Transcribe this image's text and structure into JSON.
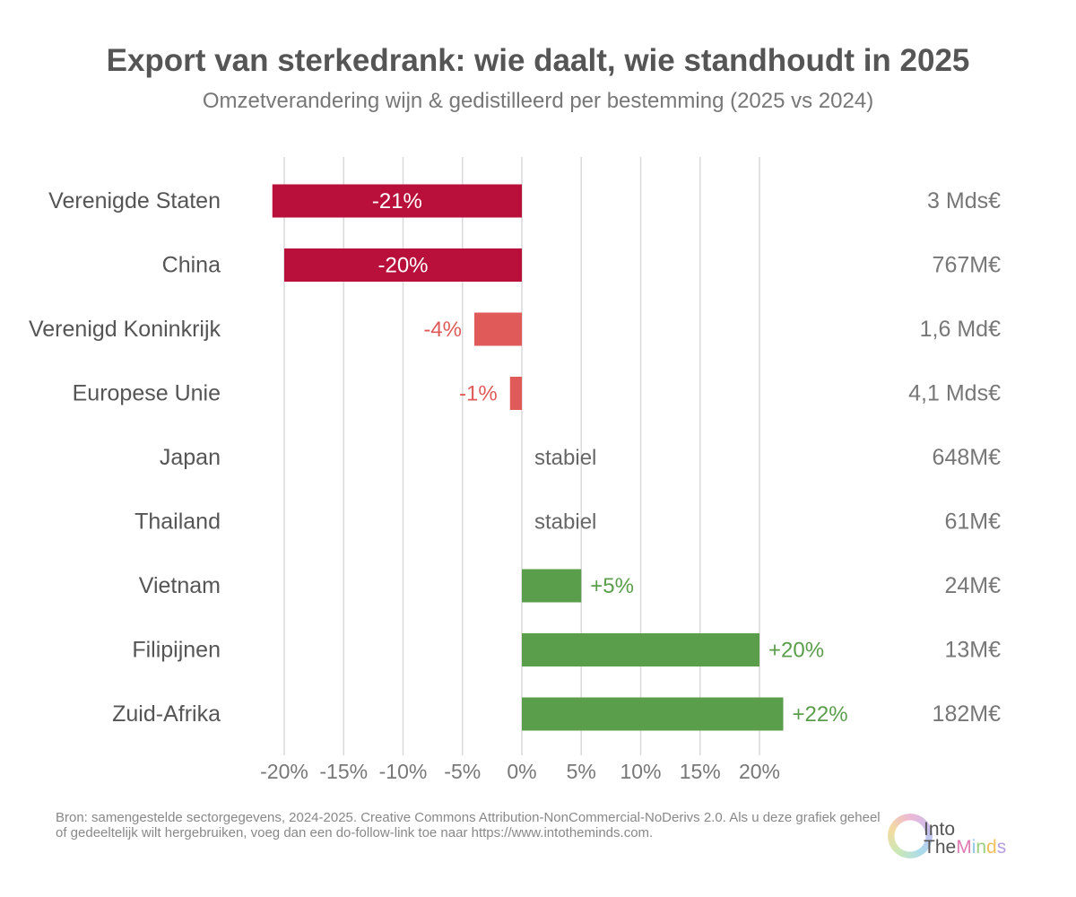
{
  "header": {
    "title": "Export van sterkedrank: wie daalt, wie standhoudt in 2025",
    "subtitle": "Omzetverandering wijn & gedistilleerd per bestemming (2025 vs 2024)"
  },
  "chart_data": {
    "type": "bar",
    "orientation": "horizontal",
    "title": "Export van sterkedrank: wie daalt, wie standhoudt in 2025",
    "subtitle": "Omzetverandering wijn & gedistilleerd per bestemming (2025 vs 2024)",
    "categories": [
      "Verenigde Staten",
      "China",
      "Verenigd Koninkrijk",
      "Europese Unie",
      "Japan",
      "Thailand",
      "Vietnam",
      "Filipijnen",
      "Zuid-Afrika"
    ],
    "values": [
      -21,
      -20,
      -4,
      -1,
      0,
      0,
      5,
      20,
      22
    ],
    "value_labels": [
      "-21%",
      "-20%",
      "-4%",
      "-1%",
      "stabiel",
      "stabiel",
      "+5%",
      "+20%",
      "+22%"
    ],
    "totals": [
      "3 Mds€",
      "767M€",
      "1,6 Md€",
      "4,1 Mds€",
      "648M€",
      "61M€",
      "24M€",
      "13M€",
      "182M€"
    ],
    "xlim": [
      -20,
      20
    ],
    "x_ticks": [
      -20,
      -15,
      -10,
      -5,
      0,
      5,
      10,
      15,
      20
    ],
    "x_tick_labels": [
      "-20%",
      "-15%",
      "-10%",
      "-5%",
      "0%",
      "5%",
      "10%",
      "15%",
      "20%"
    ],
    "grid": "vertical",
    "xlabel": "",
    "ylabel": "",
    "colors": {
      "strong_negative": "#b8103a",
      "mild_negative": "#e05a5a",
      "positive": "#5a9e4b",
      "neutral_text": "#666666",
      "grid": "#d9d9d9"
    }
  },
  "footer": {
    "source": "Bron: samengestelde sectorgegevens, 2024-2025. Creative Commons Attribution-NonCommercial-NoDerivs 2.0. Als u deze grafiek geheel of gedeeltelijk wilt hergebruiken, voeg dan een do-follow-link toe naar https://www.intotheminds.com."
  },
  "logo": {
    "line1": "Into",
    "line2_a": "The",
    "line2_b": [
      "M",
      "i",
      "n",
      "d",
      "s"
    ]
  }
}
